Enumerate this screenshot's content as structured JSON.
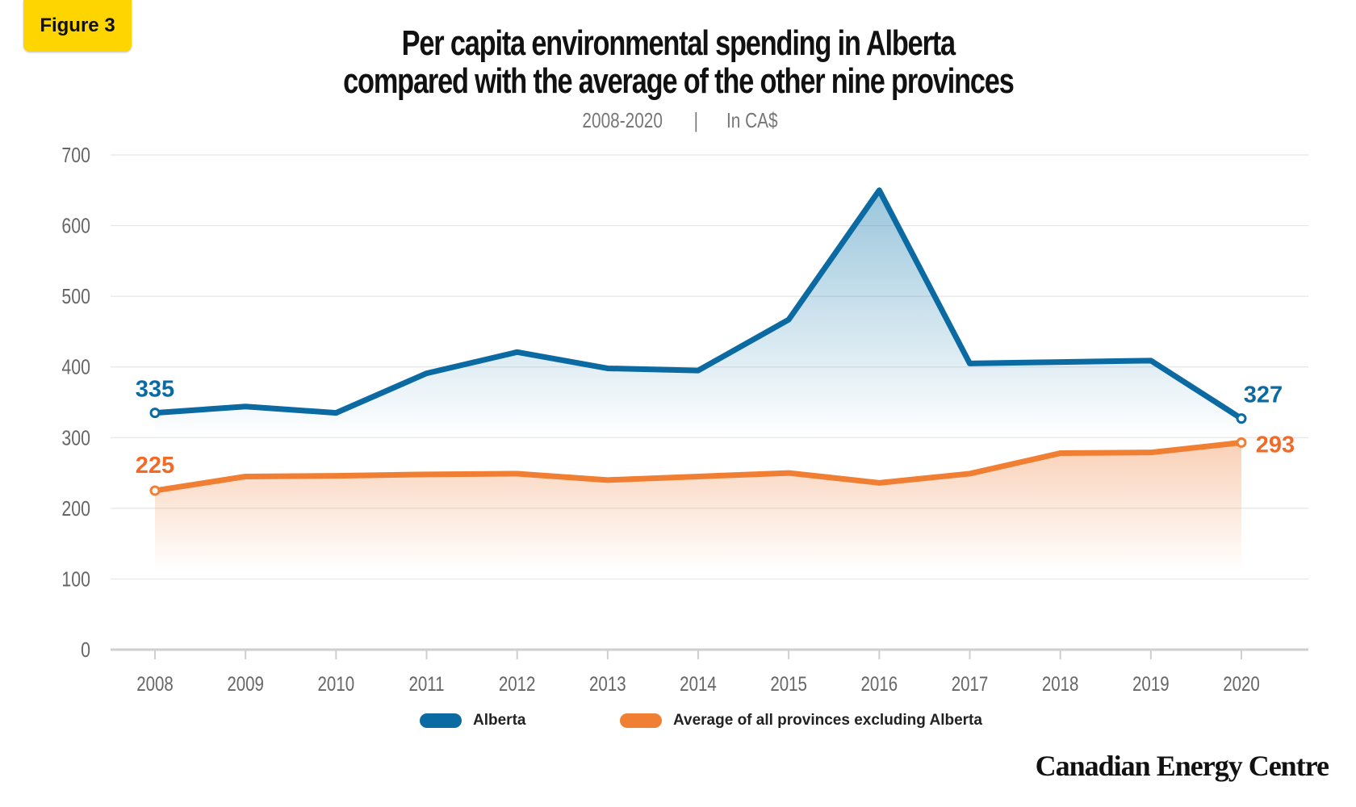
{
  "badge": "Figure 3",
  "title_line1": "Per capita environmental spending in Alberta",
  "title_line2": "compared with the average of the other nine provinces",
  "subtitle_years": "2008-2020",
  "subtitle_sep": "|",
  "subtitle_unit": "In CA$",
  "brand": "Canadian Energy Centre",
  "chart_data": {
    "type": "area",
    "categories": [
      "2008",
      "2009",
      "2010",
      "2011",
      "2012",
      "2013",
      "2014",
      "2015",
      "2016",
      "2017",
      "2018",
      "2019",
      "2020"
    ],
    "ylim": [
      0,
      700
    ],
    "yticks": [
      0,
      100,
      200,
      300,
      400,
      500,
      600,
      700
    ],
    "grid": true,
    "legend_placement": "bottom",
    "series": [
      {
        "name": "Alberta",
        "color": "#0b6aa2",
        "values": [
          335,
          344,
          335,
          391,
          421,
          398,
          395,
          467,
          650,
          405,
          407,
          409,
          327
        ],
        "labels": {
          "first": "335",
          "last": "327"
        }
      },
      {
        "name": "Average of all provinces excluding Alberta",
        "color": "#f07f34",
        "label_color": "#f26a26",
        "values": [
          225,
          245,
          246,
          248,
          249,
          240,
          245,
          250,
          236,
          249,
          278,
          279,
          293
        ],
        "labels": {
          "first": "225",
          "last": "293"
        }
      }
    ]
  }
}
